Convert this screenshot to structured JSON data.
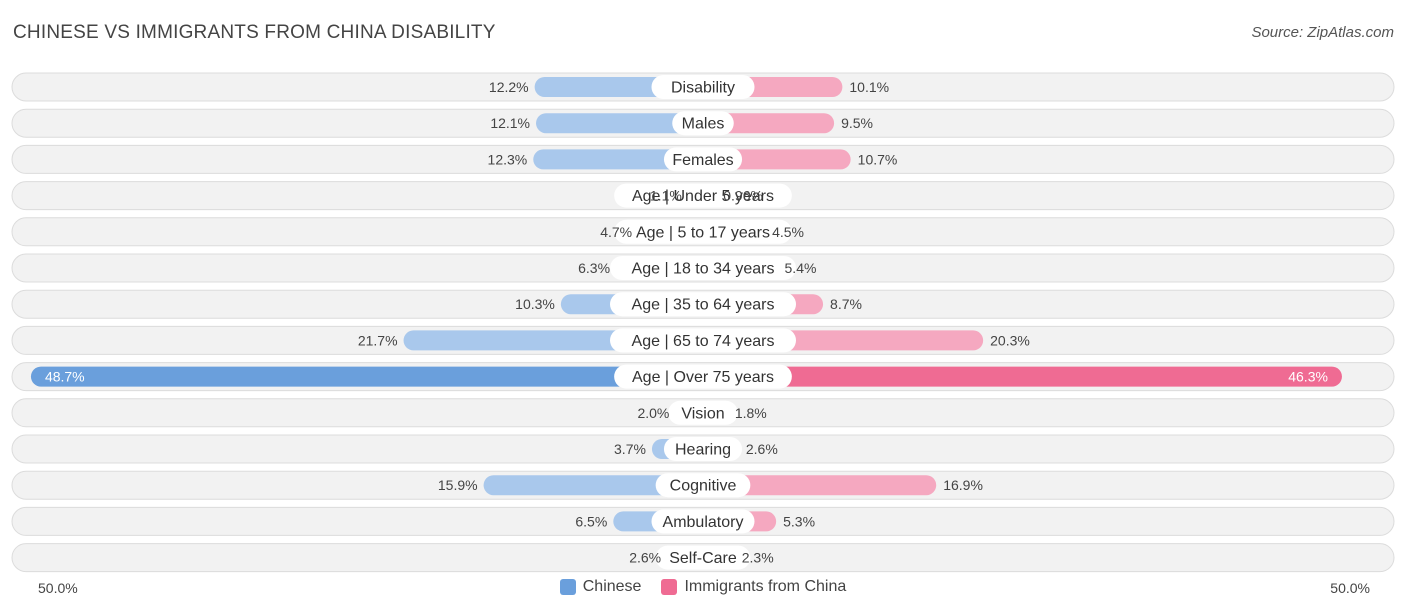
{
  "header": {
    "title": "CHINESE VS IMMIGRANTS FROM CHINA DISABILITY",
    "source": "Source: ZipAtlas.com"
  },
  "colors": {
    "chinese": "#6a9fdc",
    "chinese_light": "#a9c8ec",
    "immigrants": "#ef6b93",
    "immigrants_light": "#f5a8c0",
    "row_bg": "#f2f2f2",
    "row_border": "#dcdcdc"
  },
  "chart_data": {
    "type": "bar",
    "orientation": "diverging-horizontal",
    "categories": [
      "Disability",
      "Males",
      "Females",
      "Age | Under 5 years",
      "Age | 5 to 17 years",
      "Age | 18 to 34 years",
      "Age | 35 to 64 years",
      "Age | 65 to 74 years",
      "Age | Over 75 years",
      "Vision",
      "Hearing",
      "Cognitive",
      "Ambulatory",
      "Self-Care"
    ],
    "series": [
      {
        "name": "Chinese",
        "side": "left",
        "values": [
          12.2,
          12.1,
          12.3,
          1.1,
          4.7,
          6.3,
          10.3,
          21.7,
          48.7,
          2.0,
          3.7,
          15.9,
          6.5,
          2.6
        ],
        "labels": [
          "12.2%",
          "12.1%",
          "12.3%",
          "1.1%",
          "4.7%",
          "6.3%",
          "10.3%",
          "21.7%",
          "48.7%",
          "2.0%",
          "3.7%",
          "15.9%",
          "6.5%",
          "2.6%"
        ]
      },
      {
        "name": "Immigrants from China",
        "side": "right",
        "values": [
          10.1,
          9.5,
          10.7,
          0.96,
          4.5,
          5.4,
          8.7,
          20.3,
          46.3,
          1.8,
          2.6,
          16.9,
          5.3,
          2.3
        ],
        "labels": [
          "10.1%",
          "9.5%",
          "10.7%",
          "0.96%",
          "4.5%",
          "5.4%",
          "8.7%",
          "20.3%",
          "46.3%",
          "1.8%",
          "2.6%",
          "16.9%",
          "5.3%",
          "2.3%"
        ]
      }
    ],
    "xlim": [
      0,
      50
    ],
    "axis_min_label": "50.0%",
    "axis_max_label": "50.0%",
    "legend_position": "bottom-center"
  }
}
